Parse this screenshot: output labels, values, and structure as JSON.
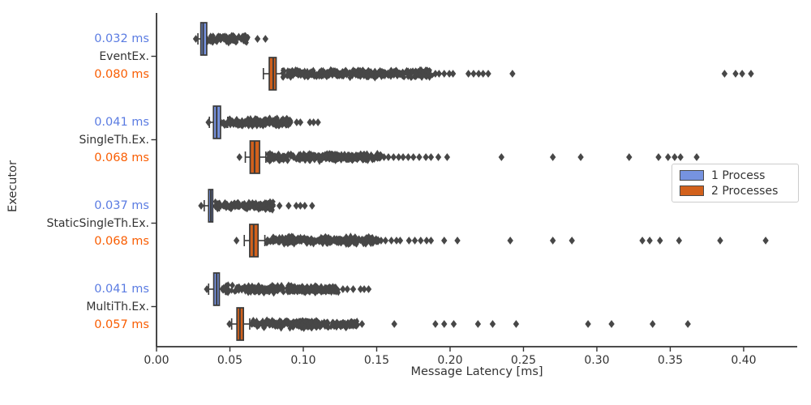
{
  "colors": {
    "process1_fill": "#7693e0",
    "process2_fill": "#d2611c",
    "annotation_blue": "#5b7ce2",
    "annotation_orange": "#f95d02",
    "box_edge": "#3a3a3a",
    "flier": "#474747",
    "axis": "#333333",
    "legend_border": "#cccccc"
  },
  "legend": {
    "items": [
      {
        "label": "1 Process",
        "color": "#7693e0"
      },
      {
        "label": "2 Processes",
        "color": "#d2611c"
      }
    ]
  },
  "chart_data": {
    "type": "boxplot-horizontal",
    "title": "",
    "xlabel": "Message Latency [ms]",
    "ylabel": "Executor",
    "xlim": [
      0.0,
      0.4365
    ],
    "grid": false,
    "legend_position": "center right",
    "x_ticks": [
      0.0,
      0.05,
      0.1,
      0.15,
      0.2,
      0.25,
      0.3,
      0.35,
      0.4
    ],
    "x_tick_labels": [
      "0.00",
      "0.05",
      "0.10",
      "0.15",
      "0.20",
      "0.25",
      "0.30",
      "0.35",
      "0.40"
    ],
    "series": [
      "1 Process",
      "2 Processes"
    ],
    "groups": [
      {
        "label": "EventEx.",
        "annotation_1p": "0.032 ms",
        "annotation_2p": "0.080 ms",
        "boxes": [
          {
            "series": "1 Process",
            "whisker_lo": 0.0282,
            "q1": 0.0302,
            "median": 0.0318,
            "q3": 0.0342,
            "whisker_hi": 0.0385,
            "fliers_dense": {
              "from": 0.034,
              "to": 0.0625,
              "count": 120
            },
            "fliers": [
              0.0268,
              0.0688,
              0.0742
            ]
          },
          {
            "series": "2 Processes",
            "whisker_lo": 0.0728,
            "q1": 0.0768,
            "median": 0.0795,
            "q3": 0.0815,
            "whisker_hi": 0.0855,
            "fliers_dense": {
              "from": 0.086,
              "to": 0.188,
              "count": 340
            },
            "fliers": [
              0.19,
              0.1925,
              0.196,
              0.1995,
              0.202,
              0.2125,
              0.216,
              0.2195,
              0.2225,
              0.226,
              0.2425,
              0.387,
              0.3945,
              0.399,
              0.405
            ]
          }
        ]
      },
      {
        "label": "SingleTh.Ex.",
        "annotation_1p": "0.041 ms",
        "annotation_2p": "0.068 ms",
        "boxes": [
          {
            "series": "1 Process",
            "whisker_lo": 0.036,
            "q1": 0.0388,
            "median": 0.041,
            "q3": 0.0436,
            "whisker_hi": 0.0485,
            "fliers_dense": {
              "from": 0.044,
              "to": 0.0925,
              "count": 180
            },
            "fliers": [
              0.0354,
              0.0955,
              0.098,
              0.1045,
              0.107,
              0.11
            ]
          },
          {
            "series": "2 Processes",
            "whisker_lo": 0.0605,
            "q1": 0.0638,
            "median": 0.0668,
            "q3": 0.0702,
            "whisker_hi": 0.0745,
            "fliers_dense": {
              "from": 0.0755,
              "to": 0.153,
              "count": 270
            },
            "fliers": [
              0.0565,
              0.155,
              0.158,
              0.1615,
              0.165,
              0.168,
              0.1715,
              0.175,
              0.179,
              0.1835,
              0.187,
              0.192,
              0.198,
              0.235,
              0.27,
              0.289,
              0.322,
              0.342,
              0.3485,
              0.353,
              0.357,
              0.368
            ]
          }
        ]
      },
      {
        "label": "StaticSingleTh.Ex.",
        "annotation_1p": "0.037 ms",
        "annotation_2p": "0.068 ms",
        "boxes": [
          {
            "series": "1 Process",
            "whisker_lo": 0.0325,
            "q1": 0.0355,
            "median": 0.037,
            "q3": 0.0383,
            "whisker_hi": 0.0428,
            "fliers_dense": {
              "from": 0.0395,
              "to": 0.0795,
              "count": 160
            },
            "fliers": [
              0.0304,
              0.0838,
              0.09,
              0.0952,
              0.098,
              0.101,
              0.106
            ]
          },
          {
            "series": "2 Processes",
            "whisker_lo": 0.0598,
            "q1": 0.0635,
            "median": 0.0662,
            "q3": 0.0692,
            "whisker_hi": 0.0738,
            "fliers_dense": {
              "from": 0.075,
              "to": 0.1515,
              "count": 270
            },
            "fliers": [
              0.0545,
              0.153,
              0.156,
              0.16,
              0.1635,
              0.166,
              0.172,
              0.176,
              0.18,
              0.184,
              0.187,
              0.196,
              0.205,
              0.241,
              0.27,
              0.283,
              0.331,
              0.336,
              0.343,
              0.356,
              0.384,
              0.415
            ]
          }
        ]
      },
      {
        "label": "MultiTh.Ex.",
        "annotation_1p": "0.041 ms",
        "annotation_2p": "0.057 ms",
        "boxes": [
          {
            "series": "1 Process",
            "whisker_lo": 0.0355,
            "q1": 0.039,
            "median": 0.041,
            "q3": 0.0428,
            "whisker_hi": 0.047,
            "fliers_dense": {
              "from": 0.044,
              "to": 0.124,
              "count": 290
            },
            "fliers": [
              0.0343,
              0.127,
              0.13,
              0.134,
              0.139,
              0.1415,
              0.1445
            ]
          },
          {
            "series": "2 Processes",
            "whisker_lo": 0.0512,
            "q1": 0.0548,
            "median": 0.0568,
            "q3": 0.0592,
            "whisker_hi": 0.0635,
            "fliers_dense": {
              "from": 0.0645,
              "to": 0.1375,
              "count": 270
            },
            "fliers": [
              0.0497,
              0.14,
              0.162,
              0.19,
              0.196,
              0.2025,
              0.219,
              0.229,
              0.245,
              0.294,
              0.31,
              0.338,
              0.362
            ]
          }
        ]
      }
    ]
  }
}
